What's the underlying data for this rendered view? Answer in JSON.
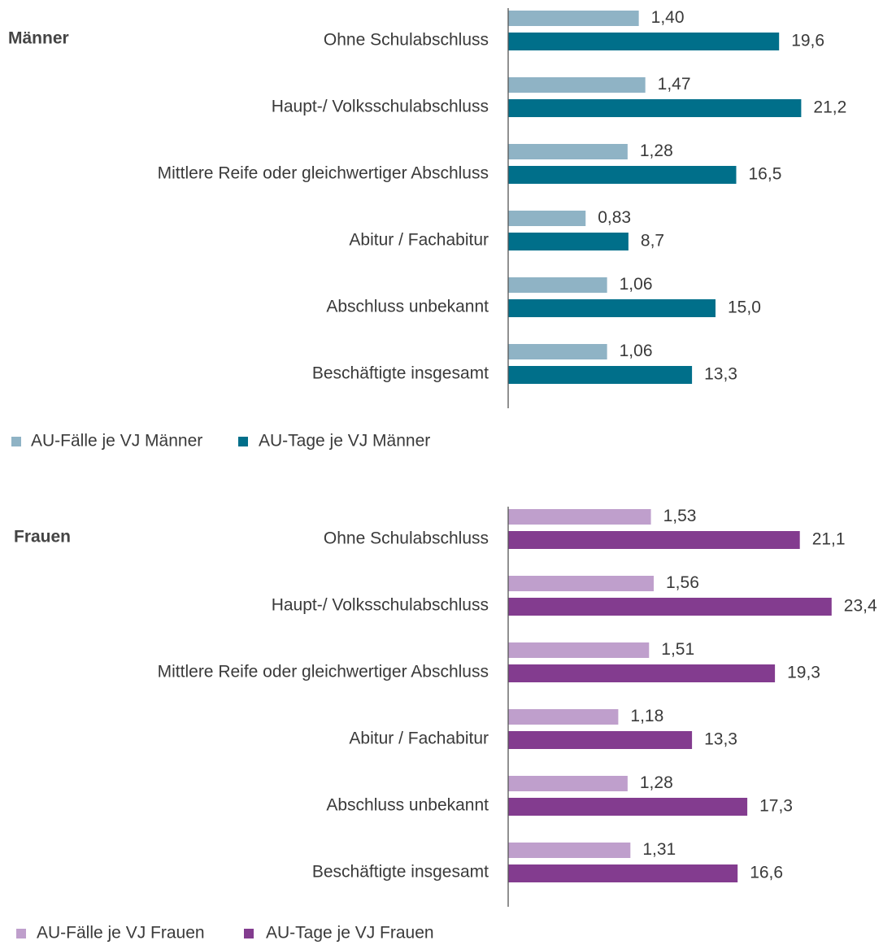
{
  "chart_data": [
    {
      "type": "bar",
      "orientation": "horizontal",
      "title": "Männer",
      "categories": [
        "Ohne Schulabschluss",
        "Haupt-/ Volksschulabschluss",
        "Mittlere Reife oder gleichwertiger Abschluss",
        "Abitur / Fachabitur",
        "Abschluss unbekannt",
        "Beschäftigte insgesamt"
      ],
      "xlim": [
        0,
        4
      ],
      "x2lim": [
        0,
        27
      ],
      "legend": "bottom-left",
      "series": [
        {
          "name": "AU-Fälle je VJ Männer",
          "color": "#8fb3c5",
          "axis": "x",
          "values": [
            1.4,
            1.47,
            1.28,
            0.83,
            1.06,
            1.06
          ],
          "value_labels": [
            "1,40",
            "1,47",
            "1,28",
            "0,83",
            "1,06",
            "1,06"
          ]
        },
        {
          "name": "AU-Tage je VJ Männer",
          "color": "#006f8a",
          "axis": "x2",
          "values": [
            19.6,
            21.2,
            16.5,
            8.7,
            15.0,
            13.3
          ],
          "value_labels": [
            "19,6",
            "21,2",
            "16,5",
            "8,7",
            "15,0",
            "13,3"
          ]
        }
      ]
    },
    {
      "type": "bar",
      "orientation": "horizontal",
      "title": "Frauen",
      "categories": [
        "Ohne Schulabschluss",
        "Haupt-/ Volksschulabschluss",
        "Mittlere Reife oder gleichwertiger Abschluss",
        "Abitur / Fachabitur",
        "Abschluss unbekannt",
        "Beschäftigte insgesamt"
      ],
      "xlim": [
        0,
        4
      ],
      "x2lim": [
        0,
        27
      ],
      "legend": "bottom-left",
      "series": [
        {
          "name": "AU-Fälle je VJ Frauen",
          "color": "#bf9fcc",
          "axis": "x",
          "values": [
            1.53,
            1.56,
            1.51,
            1.18,
            1.28,
            1.31
          ],
          "value_labels": [
            "1,53",
            "1,56",
            "1,51",
            "1,18",
            "1,28",
            "1,31"
          ]
        },
        {
          "name": "AU-Tage je VJ Frauen",
          "color": "#833c8f",
          "axis": "x2",
          "values": [
            21.1,
            23.4,
            19.3,
            13.3,
            17.3,
            16.6
          ],
          "value_labels": [
            "21,1",
            "23,4",
            "19,3",
            "13,3",
            "17,3",
            "16,6"
          ]
        }
      ]
    }
  ]
}
